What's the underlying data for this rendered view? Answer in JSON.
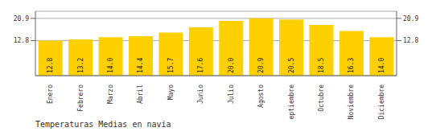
{
  "chart_data": {
    "type": "bar",
    "title": "Temperaturas Medias en navia",
    "categories": [
      "Enero",
      "Febrero",
      "Marzo",
      "Abril",
      "Mayo",
      "Junio",
      "Julio",
      "Agosto",
      "Septiembre",
      "Octubre",
      "Noviembre",
      "Diciembre"
    ],
    "values": [
      12.8,
      13.2,
      14.0,
      14.4,
      15.7,
      17.6,
      20.0,
      20.9,
      20.5,
      18.5,
      16.3,
      14.0
    ],
    "value_labels": [
      "12.8",
      "13.2",
      "14.0",
      "14.4",
      "15.7",
      "17.6",
      "20.0",
      "20.9",
      "20.5",
      "18.5",
      "16.3",
      "14.0"
    ],
    "color": "#FFD000",
    "ylim": [
      0,
      23.5
    ],
    "yticks": [
      12.8,
      20.9
    ],
    "y2lim": [
      0,
      23.5
    ],
    "y2ticks": [
      12.8,
      20.9
    ],
    "grid": true,
    "data_labels": true
  }
}
